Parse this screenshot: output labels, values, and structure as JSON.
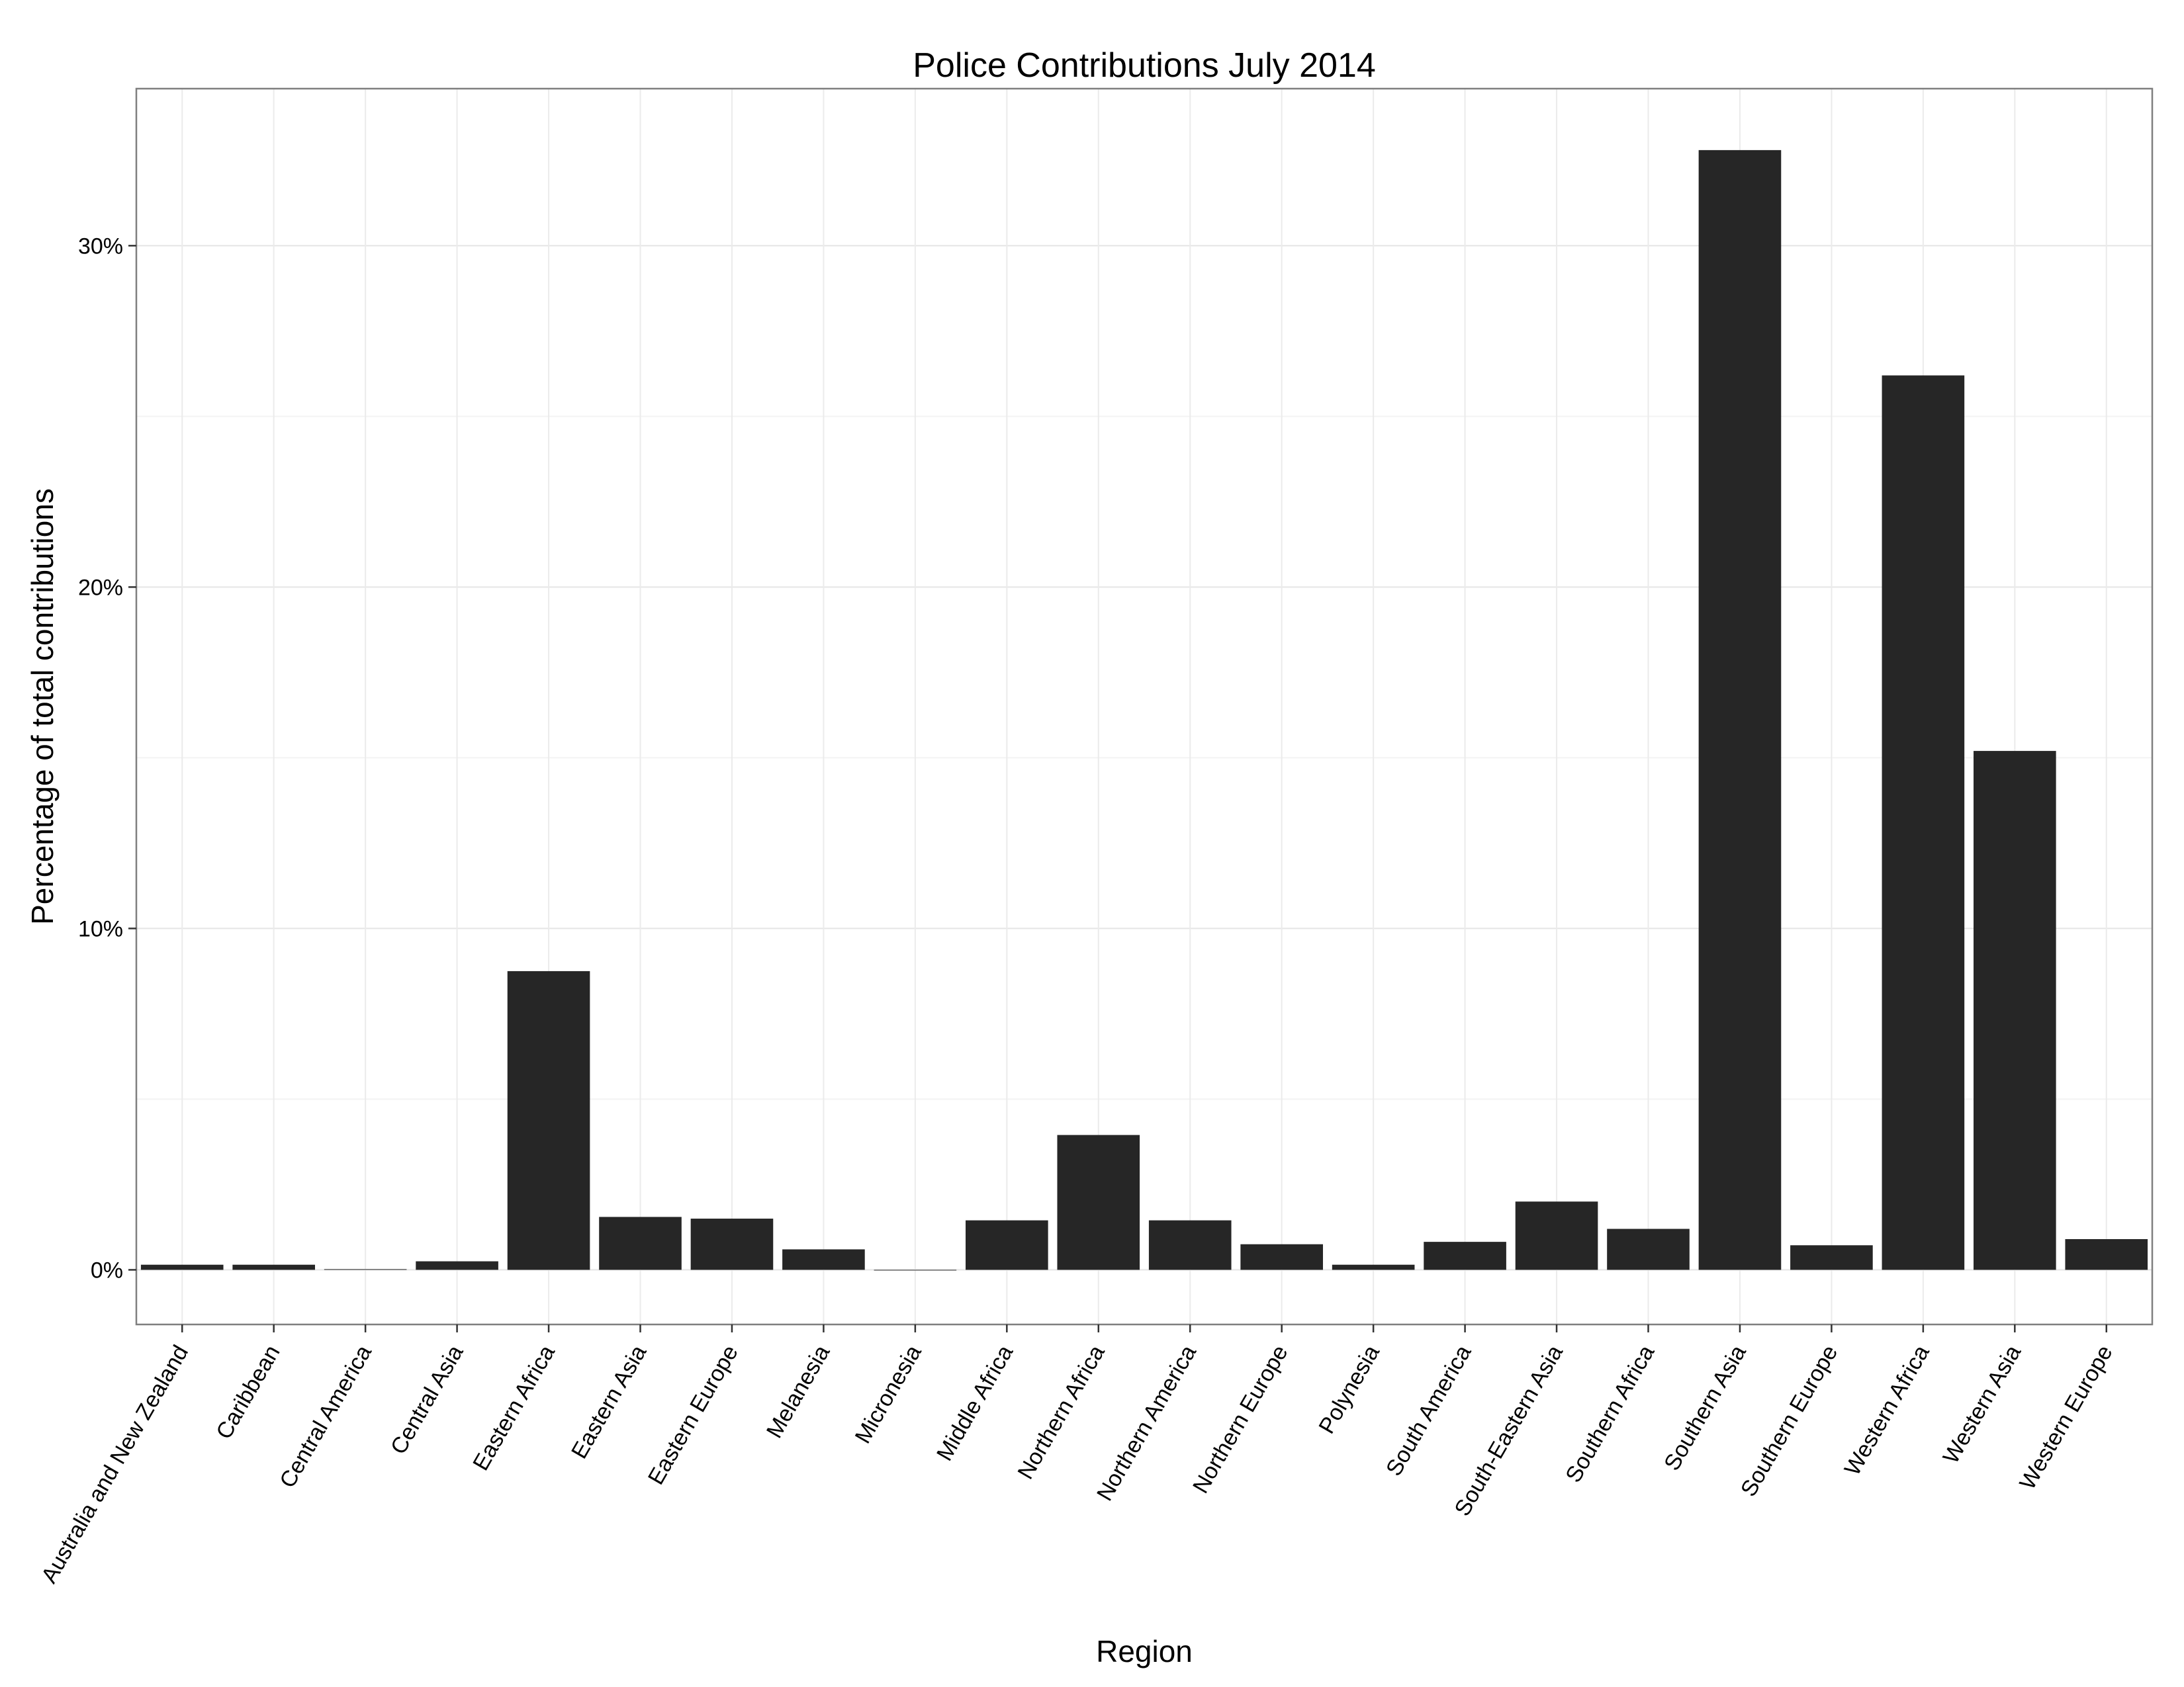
{
  "chart_data": {
    "type": "bar",
    "title": "Police Contributions July 2014",
    "xlabel": "Region",
    "ylabel": "Percentage of total contributions",
    "ylim": [
      -1.6,
      34.6
    ],
    "yticks": [
      0,
      10,
      20,
      30
    ],
    "ytick_labels": [
      "0%",
      "10%",
      "20%",
      "30%"
    ],
    "grid": true,
    "bar_color": "#262626",
    "categories": [
      "Australia and New Zealand",
      "Caribbean",
      "Central America",
      "Central Asia",
      "Eastern Africa",
      "Eastern Asia",
      "Eastern Europe",
      "Melanesia",
      "Micronesia",
      "Middle Africa",
      "Northern Africa",
      "Northern America",
      "Northern Europe",
      "Polynesia",
      "South America",
      "South-Eastern Asia",
      "Southern Africa",
      "Southern Asia",
      "Southern Europe",
      "Western Africa",
      "Western Asia",
      "Western Europe"
    ],
    "values": [
      0.15,
      0.15,
      0.02,
      0.25,
      8.75,
      1.55,
      1.5,
      0.6,
      0.0,
      1.45,
      3.95,
      1.45,
      0.75,
      0.15,
      0.82,
      2.0,
      1.2,
      32.8,
      0.72,
      26.2,
      15.2,
      0.9
    ]
  }
}
